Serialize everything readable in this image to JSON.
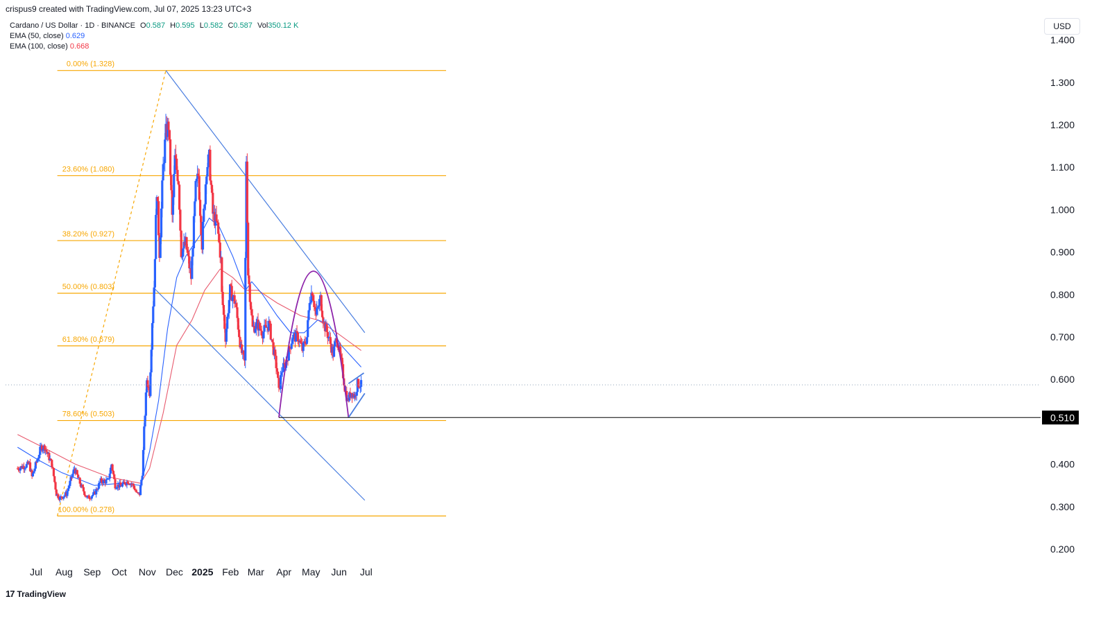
{
  "header": {
    "attribution": "crispus9 created with TradingView.com, Jul 07, 2025 13:23 UTC+3"
  },
  "legend": {
    "symbol": "Cardano / US Dollar · 1D · BINANCE",
    "ohlc": {
      "o_label": "O",
      "o": "0.587",
      "h_label": "H",
      "h": "0.595",
      "l_label": "L",
      "l": "0.582",
      "c_label": "C",
      "c": "0.587",
      "vol_label": "Vol",
      "vol": "350.12 K"
    },
    "ema50_label": "EMA (50, close)",
    "ema50_value": "0.629",
    "ema100_label": "EMA (100, close)",
    "ema100_value": "0.668"
  },
  "currency": "USD",
  "footer": {
    "logo": "17",
    "brand": "TradingView"
  },
  "colors": {
    "up": "#2962ff",
    "down": "#f23645",
    "ema50": "#2962ff",
    "ema100": "#e85a6e",
    "fib": "#f7a600",
    "channel": "#4a7ee0",
    "arc": "#8e24aa",
    "support": "#000000"
  },
  "chart_data": {
    "type": "candlestick",
    "ylim": [
      0.18,
      1.43
    ],
    "y_ticks": [
      "1.400",
      "1.300",
      "1.200",
      "1.100",
      "1.000",
      "0.900",
      "0.800",
      "0.700",
      "0.600",
      "0.500",
      "0.400",
      "0.300",
      "0.200"
    ],
    "x_ticks": [
      {
        "label": "Jul",
        "date": "2024-07-01",
        "bold": false
      },
      {
        "label": "Aug",
        "date": "2024-08-01",
        "bold": false
      },
      {
        "label": "Sep",
        "date": "2024-09-01",
        "bold": false
      },
      {
        "label": "Oct",
        "date": "2024-10-01",
        "bold": false
      },
      {
        "label": "Nov",
        "date": "2024-11-01",
        "bold": false
      },
      {
        "label": "Dec",
        "date": "2024-12-01",
        "bold": false
      },
      {
        "label": "2025",
        "date": "2025-01-01",
        "bold": true
      },
      {
        "label": "Feb",
        "date": "2025-02-01",
        "bold": false
      },
      {
        "label": "Mar",
        "date": "2025-03-01",
        "bold": false
      },
      {
        "label": "Apr",
        "date": "2025-04-01",
        "bold": false
      },
      {
        "label": "May",
        "date": "2025-05-01",
        "bold": false
      },
      {
        "label": "Jun",
        "date": "2025-06-01",
        "bold": false
      },
      {
        "label": "Jul",
        "date": "2025-07-01",
        "bold": false
      }
    ],
    "close_path": [
      [
        "2024-06-22",
        0.39
      ],
      [
        "2024-07-05",
        0.4
      ],
      [
        "2024-07-08",
        0.37
      ],
      [
        "2024-07-18",
        0.44
      ],
      [
        "2024-07-22",
        0.44
      ],
      [
        "2024-07-30",
        0.4
      ],
      [
        "2024-08-04",
        0.33
      ],
      [
        "2024-08-08",
        0.32
      ],
      [
        "2024-08-15",
        0.33
      ],
      [
        "2024-08-24",
        0.39
      ],
      [
        "2024-08-31",
        0.35
      ],
      [
        "2024-09-07",
        0.32
      ],
      [
        "2024-09-15",
        0.33
      ],
      [
        "2024-09-22",
        0.36
      ],
      [
        "2024-09-30",
        0.36
      ],
      [
        "2024-10-04",
        0.4
      ],
      [
        "2024-10-08",
        0.35
      ],
      [
        "2024-10-15",
        0.35
      ],
      [
        "2024-10-22",
        0.36
      ],
      [
        "2024-10-28",
        0.35
      ],
      [
        "2024-11-01",
        0.33
      ],
      [
        "2024-11-04",
        0.33
      ],
      [
        "2024-11-07",
        0.38
      ],
      [
        "2024-11-09",
        0.48
      ],
      [
        "2024-11-12",
        0.6
      ],
      [
        "2024-11-15",
        0.57
      ],
      [
        "2024-11-18",
        0.74
      ],
      [
        "2024-11-20",
        0.82
      ],
      [
        "2024-11-23",
        1.05
      ],
      [
        "2024-11-26",
        0.9
      ],
      [
        "2024-11-30",
        1.1
      ],
      [
        "2024-12-03",
        1.18
      ],
      [
        "2024-12-06",
        1.2
      ],
      [
        "2024-12-10",
        0.98
      ],
      [
        "2024-12-13",
        1.12
      ],
      [
        "2024-12-17",
        1.07
      ],
      [
        "2024-12-20",
        0.9
      ],
      [
        "2024-12-25",
        0.92
      ],
      [
        "2024-12-31",
        0.84
      ],
      [
        "2025-01-05",
        1.05
      ],
      [
        "2025-01-08",
        1.08
      ],
      [
        "2025-01-12",
        0.92
      ],
      [
        "2025-01-17",
        1.1
      ],
      [
        "2025-01-20",
        1.12
      ],
      [
        "2025-01-24",
        0.99
      ],
      [
        "2025-01-29",
        0.96
      ],
      [
        "2025-02-02",
        0.88
      ],
      [
        "2025-02-03",
        0.8
      ],
      [
        "2025-02-07",
        0.7
      ],
      [
        "2025-02-12",
        0.81
      ],
      [
        "2025-02-18",
        0.78
      ],
      [
        "2025-02-24",
        0.67
      ],
      [
        "2025-02-28",
        0.64
      ],
      [
        "2025-03-02",
        1.12
      ],
      [
        "2025-03-04",
        0.85
      ],
      [
        "2025-03-09",
        0.72
      ],
      [
        "2025-03-14",
        0.73
      ],
      [
        "2025-03-20",
        0.71
      ],
      [
        "2025-03-27",
        0.73
      ],
      [
        "2025-04-01",
        0.67
      ],
      [
        "2025-04-05",
        0.62
      ],
      [
        "2025-04-07",
        0.57
      ],
      [
        "2025-04-10",
        0.62
      ],
      [
        "2025-04-15",
        0.64
      ],
      [
        "2025-04-22",
        0.7
      ],
      [
        "2025-04-28",
        0.7
      ],
      [
        "2025-05-03",
        0.67
      ],
      [
        "2025-05-08",
        0.7
      ],
      [
        "2025-05-11",
        0.79
      ],
      [
        "2025-05-14",
        0.81
      ],
      [
        "2025-05-18",
        0.75
      ],
      [
        "2025-05-23",
        0.79
      ],
      [
        "2025-05-27",
        0.73
      ],
      [
        "2025-06-01",
        0.7
      ],
      [
        "2025-06-06",
        0.66
      ],
      [
        "2025-06-10",
        0.7
      ],
      [
        "2025-06-15",
        0.64
      ],
      [
        "2025-06-19",
        0.58
      ],
      [
        "2025-06-22",
        0.55
      ],
      [
        "2025-06-26",
        0.57
      ],
      [
        "2025-06-30",
        0.56
      ],
      [
        "2025-07-03",
        0.59
      ],
      [
        "2025-07-07",
        0.587
      ]
    ],
    "ema50_path": [
      [
        "2024-06-22",
        0.44
      ],
      [
        "2024-07-15",
        0.41
      ],
      [
        "2024-08-10",
        0.38
      ],
      [
        "2024-09-15",
        0.35
      ],
      [
        "2024-10-15",
        0.355
      ],
      [
        "2024-11-05",
        0.35
      ],
      [
        "2024-11-15",
        0.43
      ],
      [
        "2024-11-25",
        0.55
      ],
      [
        "2024-12-05",
        0.72
      ],
      [
        "2024-12-15",
        0.84
      ],
      [
        "2024-12-25",
        0.89
      ],
      [
        "2025-01-10",
        0.94
      ],
      [
        "2025-01-20",
        0.98
      ],
      [
        "2025-01-31",
        0.96
      ],
      [
        "2025-02-15",
        0.89
      ],
      [
        "2025-03-01",
        0.81
      ],
      [
        "2025-03-08",
        0.83
      ],
      [
        "2025-03-20",
        0.8
      ],
      [
        "2025-04-05",
        0.75
      ],
      [
        "2025-04-20",
        0.71
      ],
      [
        "2025-05-05",
        0.71
      ],
      [
        "2025-05-20",
        0.74
      ],
      [
        "2025-06-01",
        0.73
      ],
      [
        "2025-06-15",
        0.68
      ],
      [
        "2025-07-07",
        0.629
      ]
    ],
    "ema100_path": [
      [
        "2024-06-22",
        0.47
      ],
      [
        "2024-07-20",
        0.44
      ],
      [
        "2024-08-25",
        0.4
      ],
      [
        "2024-10-01",
        0.37
      ],
      [
        "2024-11-05",
        0.355
      ],
      [
        "2024-11-15",
        0.39
      ],
      [
        "2024-11-30",
        0.52
      ],
      [
        "2024-12-15",
        0.68
      ],
      [
        "2025-01-01",
        0.74
      ],
      [
        "2025-01-15",
        0.81
      ],
      [
        "2025-02-01",
        0.86
      ],
      [
        "2025-02-15",
        0.84
      ],
      [
        "2025-03-01",
        0.81
      ],
      [
        "2025-03-15",
        0.81
      ],
      [
        "2025-04-05",
        0.78
      ],
      [
        "2025-05-01",
        0.75
      ],
      [
        "2025-05-20",
        0.74
      ],
      [
        "2025-06-10",
        0.71
      ],
      [
        "2025-07-07",
        0.668
      ]
    ],
    "fibonacci": {
      "start_date": "2024-08-05",
      "end_date": "2024-12-03",
      "levels": [
        {
          "label": "0.00% (1.328)",
          "value": 1.328
        },
        {
          "label": "23.60% (1.080)",
          "value": 1.08
        },
        {
          "label": "38.20% (0.927)",
          "value": 0.927
        },
        {
          "label": "50.00% (0.803)",
          "value": 0.803
        },
        {
          "label": "61.80% (0.679)",
          "value": 0.679
        },
        {
          "label": "78.60% (0.503)",
          "value": 0.503
        },
        {
          "label": "100.00% (0.278)",
          "value": 0.278
        }
      ]
    },
    "annotations": {
      "channel_upper": [
        [
          "2024-12-03",
          1.328
        ],
        [
          "2025-07-11",
          0.71
        ]
      ],
      "channel_lower": [
        [
          "2024-11-20",
          0.815
        ],
        [
          "2025-07-11",
          0.315
        ]
      ],
      "rounded_top": {
        "start": [
          "2025-04-07",
          0.51
        ],
        "peak": [
          "2025-05-15",
          0.855
        ],
        "end": [
          "2025-06-23",
          0.51
        ]
      },
      "wedge_upper": [
        [
          "2025-06-23",
          0.59
        ],
        [
          "2025-07-10",
          0.615
        ]
      ],
      "wedge_lower": [
        [
          "2025-06-23",
          0.51
        ],
        [
          "2025-07-11",
          0.567
        ]
      ],
      "support": {
        "from": "2025-04-07",
        "value": 0.51,
        "label": "0.510"
      },
      "last_price": 0.587
    }
  }
}
